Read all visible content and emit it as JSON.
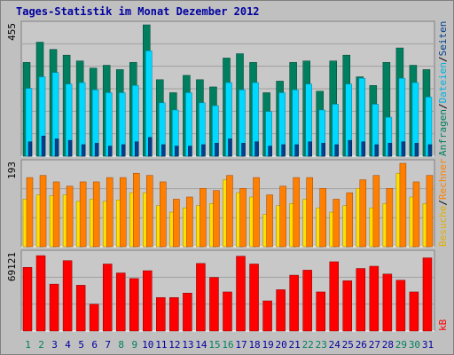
{
  "title": "Tages-Statistik im Monat Dezember 2012",
  "colors": {
    "anfragen": "#007f5f",
    "dateien": "#00d8ff",
    "seiten": "#00408f",
    "besuche": "#ffe000",
    "rechner": "#ff8000",
    "kb": "#ff0000",
    "weekday_label": "#0000a0",
    "weekend_label": "#00805f"
  },
  "chart_data": [
    {
      "type": "bar",
      "panel": "top",
      "ymax_label": "455",
      "ymax": 455,
      "x": [
        "1",
        "2",
        "3",
        "4",
        "5",
        "6",
        "7",
        "8",
        "9",
        "10",
        "11",
        "12",
        "13",
        "14",
        "15",
        "16",
        "17",
        "18",
        "19",
        "20",
        "21",
        "22",
        "23",
        "24",
        "25",
        "26",
        "27",
        "28",
        "29",
        "30",
        "31"
      ],
      "weekend_days": [
        "1",
        "2",
        "8",
        "9",
        "15",
        "16",
        "22",
        "23",
        "29",
        "30"
      ],
      "series": [
        {
          "name": "Anfragen",
          "values": [
            325,
            395,
            370,
            350,
            330,
            305,
            315,
            300,
            325,
            455,
            265,
            220,
            280,
            265,
            240,
            340,
            355,
            325,
            220,
            260,
            325,
            330,
            225,
            330,
            350,
            275,
            245,
            325,
            375,
            315,
            300
          ]
        },
        {
          "name": "Dateien",
          "values": [
            235,
            275,
            290,
            250,
            255,
            230,
            220,
            220,
            245,
            365,
            185,
            160,
            220,
            185,
            175,
            255,
            230,
            255,
            155,
            220,
            230,
            250,
            160,
            180,
            250,
            270,
            180,
            135,
            270,
            255,
            205
          ]
        },
        {
          "name": "Seiten",
          "values": [
            50,
            70,
            60,
            55,
            40,
            45,
            35,
            40,
            50,
            65,
            40,
            35,
            35,
            40,
            45,
            60,
            45,
            50,
            35,
            40,
            40,
            50,
            45,
            40,
            55,
            50,
            40,
            45,
            50,
            45,
            40
          ]
        }
      ]
    },
    {
      "type": "bar",
      "panel": "middle",
      "ymax_label": "193",
      "ymax": 193,
      "x": [
        "1",
        "2",
        "3",
        "4",
        "5",
        "6",
        "7",
        "8",
        "9",
        "10",
        "11",
        "12",
        "13",
        "14",
        "15",
        "16",
        "17",
        "18",
        "19",
        "20",
        "21",
        "22",
        "23",
        "24",
        "25",
        "26",
        "27",
        "28",
        "29",
        "30",
        "31"
      ],
      "series": [
        {
          "name": "Besuche",
          "values": [
            110,
            120,
            118,
            120,
            105,
            110,
            105,
            108,
            125,
            125,
            95,
            80,
            90,
            95,
            100,
            155,
            125,
            115,
            75,
            95,
            100,
            110,
            90,
            80,
            95,
            135,
            90,
            100,
            170,
            115,
            100
          ]
        },
        {
          "name": "Rechner",
          "values": [
            160,
            165,
            150,
            140,
            150,
            150,
            160,
            160,
            170,
            165,
            150,
            110,
            115,
            135,
            130,
            165,
            135,
            160,
            120,
            140,
            160,
            160,
            135,
            110,
            125,
            155,
            165,
            135,
            193,
            150,
            165
          ]
        }
      ]
    },
    {
      "type": "bar",
      "panel": "bottom",
      "ymax_label": "69121",
      "ymax": 69121,
      "x": [
        "1",
        "2",
        "3",
        "4",
        "5",
        "6",
        "7",
        "8",
        "9",
        "10",
        "11",
        "12",
        "13",
        "14",
        "15",
        "16",
        "17",
        "18",
        "19",
        "20",
        "21",
        "22",
        "23",
        "24",
        "25",
        "26",
        "27",
        "28",
        "29",
        "30",
        "31"
      ],
      "series": [
        {
          "name": "kB",
          "values": [
            57000,
            67500,
            42000,
            63000,
            41000,
            24000,
            60000,
            52000,
            47000,
            54000,
            30000,
            30000,
            34000,
            60500,
            48000,
            35000,
            67000,
            60000,
            27000,
            37000,
            50000,
            54500,
            35000,
            62000,
            45000,
            56000,
            58000,
            51000,
            45500,
            35000,
            65500
          ]
        }
      ]
    }
  ],
  "legend_top": [
    {
      "text": "Anfragen",
      "color": "#007f5f"
    },
    {
      "text": "/",
      "color": "#000000"
    },
    {
      "text": "Dateien",
      "color": "#00b0e0"
    },
    {
      "text": "/",
      "color": "#000000"
    },
    {
      "text": "Seiten",
      "color": "#00408f"
    }
  ],
  "legend_middle": [
    {
      "text": "Besuche",
      "color": "#e0b000"
    },
    {
      "text": "/",
      "color": "#000000"
    },
    {
      "text": "Rechner",
      "color": "#ff8000"
    }
  ],
  "legend_bottom": [
    {
      "text": "kB",
      "color": "#ff0000"
    }
  ]
}
